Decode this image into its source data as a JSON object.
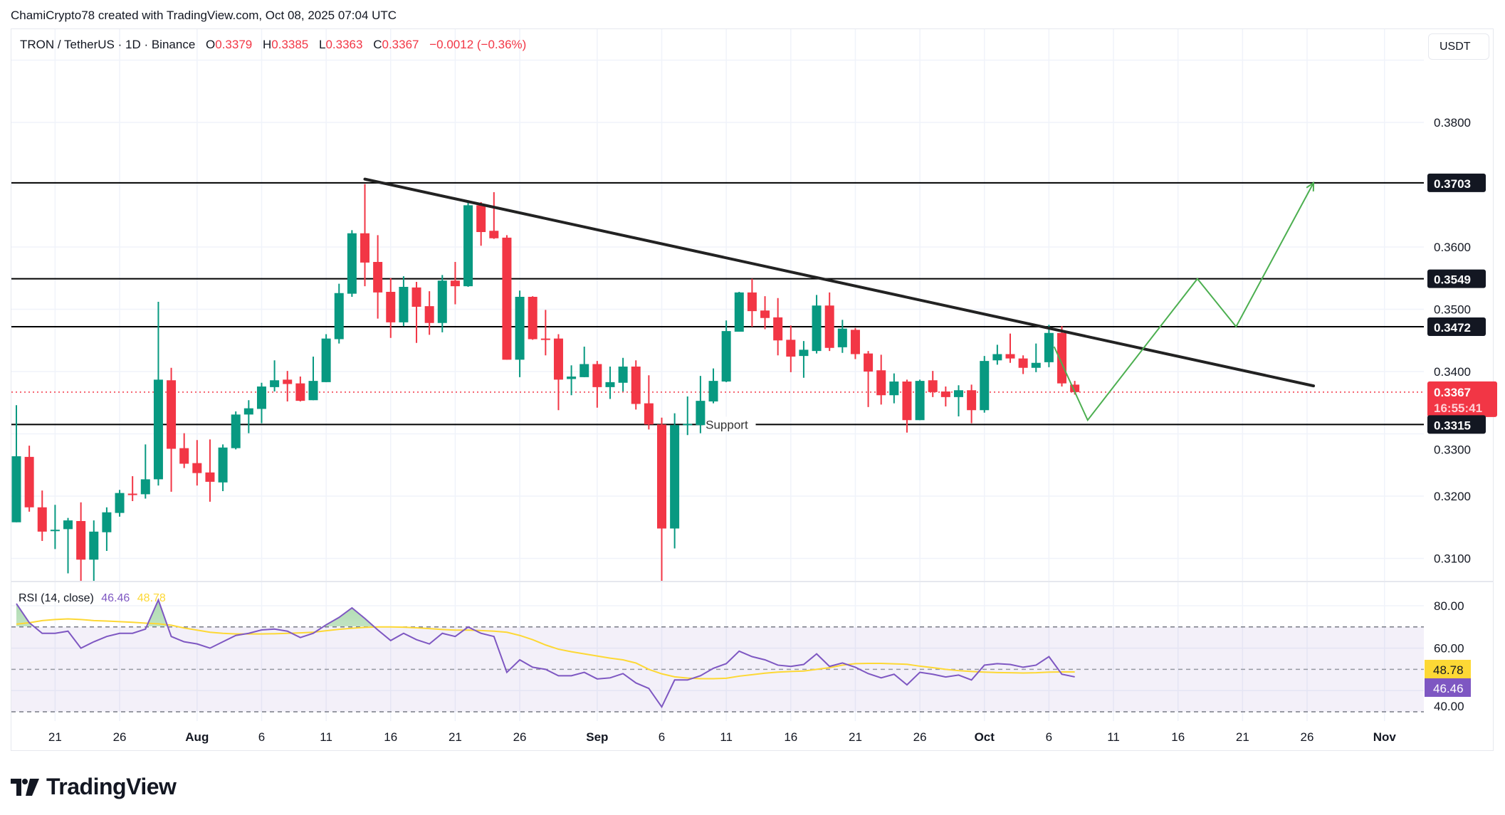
{
  "header": {
    "attribution": "ChamiCrypto78 created with TradingView.com, Oct 08, 2025 07:04 UTC"
  },
  "legend": {
    "symbol": "TRON / TetherUS · 1D · Binance",
    "open_label": "O",
    "open": "0.3379",
    "high_label": "H",
    "high": "0.3385",
    "low_label": "L",
    "low": "0.3363",
    "close_label": "C",
    "close": "0.3367",
    "change": "−0.0012 (−0.36%)"
  },
  "currency_button": "USDT",
  "colors": {
    "up": "#089981",
    "down": "#f23645",
    "rsi": "#7e57c2",
    "rsi_ma": "#fdd835",
    "projection": "#4caf50",
    "trendline": "#222222"
  },
  "price_axis": {
    "ticks": [
      "0.3800",
      "0.3600",
      "0.3500",
      "0.3400",
      "0.3300",
      "0.3200",
      "0.3100"
    ],
    "tick_values": [
      0.38,
      0.36,
      0.35,
      0.34,
      0.33,
      0.32,
      0.31
    ],
    "grid_values": [
      0.39,
      0.38,
      0.37,
      0.36,
      0.35,
      0.34,
      0.33,
      0.32,
      0.31
    ],
    "last_price": "0.3367",
    "countdown": "16:55:41"
  },
  "levels": [
    {
      "label": "0.3703",
      "value": 0.3703
    },
    {
      "label": "0.3549",
      "value": 0.3549
    },
    {
      "label": "0.3472",
      "value": 0.3472
    },
    {
      "label": "0.3315",
      "value": 0.3315,
      "text": "Support"
    }
  ],
  "drawings": {
    "trendline": [
      {
        "day": 27,
        "price": 0.3709
      },
      {
        "day": 100.5,
        "price": 0.3377
      }
    ],
    "projection": [
      {
        "day": 80.4,
        "price": 0.344
      },
      {
        "day": 83,
        "price": 0.3322
      },
      {
        "day": 91.5,
        "price": 0.3549
      },
      {
        "day": 94.5,
        "price": 0.3472
      },
      {
        "day": 100.5,
        "price": 0.3703
      }
    ]
  },
  "time_axis": [
    {
      "label": "21",
      "day": 3
    },
    {
      "label": "26",
      "day": 8
    },
    {
      "label": "Aug",
      "day": 14
    },
    {
      "label": "6",
      "day": 19
    },
    {
      "label": "11",
      "day": 24
    },
    {
      "label": "16",
      "day": 29
    },
    {
      "label": "21",
      "day": 34
    },
    {
      "label": "26",
      "day": 39
    },
    {
      "label": "Sep",
      "day": 45
    },
    {
      "label": "6",
      "day": 50
    },
    {
      "label": "11",
      "day": 55
    },
    {
      "label": "16",
      "day": 60
    },
    {
      "label": "21",
      "day": 65
    },
    {
      "label": "26",
      "day": 70
    },
    {
      "label": "Oct",
      "day": 75
    },
    {
      "label": "6",
      "day": 80
    },
    {
      "label": "11",
      "day": 85
    },
    {
      "label": "16",
      "day": 90
    },
    {
      "label": "21",
      "day": 95
    },
    {
      "label": "26",
      "day": 100
    },
    {
      "label": "Nov",
      "day": 106
    }
  ],
  "rsi": {
    "title": "RSI (14, close)",
    "value": "46.46",
    "ma_value": "48.78",
    "axis_ticks": [
      "80.00",
      "60.00",
      "40.00"
    ],
    "axis_values": [
      80,
      60,
      40
    ],
    "bands": [
      70,
      50,
      30
    ]
  },
  "chart_data": {
    "type": "candlestick",
    "title": "TRON / TetherUS · 1D · Binance",
    "start_date": "2025-07-18",
    "ylim": [
      0.303,
      0.392
    ],
    "ohlc": [
      [
        0.3158,
        0.3346,
        0.3158,
        0.3264
      ],
      [
        0.3263,
        0.3281,
        0.3175,
        0.3182
      ],
      [
        0.3182,
        0.3209,
        0.3128,
        0.3143
      ],
      [
        0.3145,
        0.3186,
        0.3115,
        0.3146
      ],
      [
        0.3147,
        0.3165,
        0.3076,
        0.3161
      ],
      [
        0.316,
        0.319,
        0.3063,
        0.3098
      ],
      [
        0.3098,
        0.3161,
        0.3063,
        0.3143
      ],
      [
        0.3142,
        0.3182,
        0.3112,
        0.3174
      ],
      [
        0.3173,
        0.321,
        0.3167,
        0.3205
      ],
      [
        0.3204,
        0.3232,
        0.3192,
        0.3203
      ],
      [
        0.3203,
        0.3283,
        0.3196,
        0.3227
      ],
      [
        0.3227,
        0.3512,
        0.3217,
        0.3387
      ],
      [
        0.3386,
        0.3406,
        0.3207,
        0.3276
      ],
      [
        0.3277,
        0.3301,
        0.3245,
        0.3252
      ],
      [
        0.3253,
        0.329,
        0.3217,
        0.3237
      ],
      [
        0.3238,
        0.3291,
        0.3191,
        0.3223
      ],
      [
        0.3222,
        0.3283,
        0.3208,
        0.3278
      ],
      [
        0.3277,
        0.3336,
        0.3275,
        0.3331
      ],
      [
        0.3331,
        0.3354,
        0.3301,
        0.3341
      ],
      [
        0.334,
        0.3382,
        0.3317,
        0.3376
      ],
      [
        0.3375,
        0.3418,
        0.3368,
        0.3386
      ],
      [
        0.3387,
        0.3401,
        0.3352,
        0.338
      ],
      [
        0.3381,
        0.3392,
        0.3352,
        0.3353
      ],
      [
        0.3354,
        0.3424,
        0.3354,
        0.3385
      ],
      [
        0.3383,
        0.346,
        0.3383,
        0.3453
      ],
      [
        0.3452,
        0.3541,
        0.3445,
        0.3526
      ],
      [
        0.3525,
        0.3627,
        0.352,
        0.3622
      ],
      [
        0.3622,
        0.3701,
        0.3537,
        0.3575
      ],
      [
        0.3576,
        0.3619,
        0.3485,
        0.3527
      ],
      [
        0.3528,
        0.355,
        0.3454,
        0.3479
      ],
      [
        0.3479,
        0.3553,
        0.3473,
        0.3536
      ],
      [
        0.3535,
        0.3544,
        0.3446,
        0.3504
      ],
      [
        0.3505,
        0.3529,
        0.3459,
        0.3478
      ],
      [
        0.3478,
        0.3555,
        0.3463,
        0.3546
      ],
      [
        0.3546,
        0.3576,
        0.3508,
        0.3537
      ],
      [
        0.3537,
        0.3675,
        0.3536,
        0.3667
      ],
      [
        0.3667,
        0.3672,
        0.3602,
        0.3624
      ],
      [
        0.3626,
        0.3688,
        0.3613,
        0.3614
      ],
      [
        0.3615,
        0.3619,
        0.3419,
        0.3419
      ],
      [
        0.3419,
        0.353,
        0.3391,
        0.352
      ],
      [
        0.352,
        0.3521,
        0.3451,
        0.3452
      ],
      [
        0.3453,
        0.3499,
        0.3426,
        0.3452
      ],
      [
        0.3453,
        0.346,
        0.3338,
        0.3387
      ],
      [
        0.3388,
        0.341,
        0.3362,
        0.3392
      ],
      [
        0.3391,
        0.344,
        0.3391,
        0.3412
      ],
      [
        0.3412,
        0.3417,
        0.3342,
        0.3375
      ],
      [
        0.3375,
        0.3408,
        0.3356,
        0.3383
      ],
      [
        0.3382,
        0.3422,
        0.3368,
        0.3408
      ],
      [
        0.3408,
        0.3418,
        0.3339,
        0.3348
      ],
      [
        0.3349,
        0.3394,
        0.3307,
        0.3315
      ],
      [
        0.3315,
        0.3326,
        0.3063,
        0.3148
      ],
      [
        0.3148,
        0.3333,
        0.3116,
        0.3314
      ],
      [
        0.3315,
        0.336,
        0.3298,
        0.3316
      ],
      [
        0.3314,
        0.3393,
        0.3301,
        0.3353
      ],
      [
        0.3352,
        0.3405,
        0.3349,
        0.3385
      ],
      [
        0.3384,
        0.3482,
        0.3383,
        0.3465
      ],
      [
        0.3464,
        0.3528,
        0.3464,
        0.3527
      ],
      [
        0.3527,
        0.3549,
        0.3472,
        0.3497
      ],
      [
        0.3498,
        0.3521,
        0.3468,
        0.3486
      ],
      [
        0.3487,
        0.3518,
        0.3426,
        0.345
      ],
      [
        0.3451,
        0.3474,
        0.3399,
        0.3424
      ],
      [
        0.3425,
        0.3449,
        0.339,
        0.3435
      ],
      [
        0.3433,
        0.3523,
        0.3429,
        0.3506
      ],
      [
        0.3506,
        0.3527,
        0.3433,
        0.3438
      ],
      [
        0.3439,
        0.3483,
        0.343,
        0.3469
      ],
      [
        0.3467,
        0.347,
        0.342,
        0.3428
      ],
      [
        0.3429,
        0.3433,
        0.3343,
        0.34
      ],
      [
        0.3402,
        0.3427,
        0.3347,
        0.3362
      ],
      [
        0.3362,
        0.3397,
        0.3349,
        0.3384
      ],
      [
        0.3384,
        0.3387,
        0.3302,
        0.3322
      ],
      [
        0.3322,
        0.3387,
        0.3322,
        0.3385
      ],
      [
        0.3386,
        0.3401,
        0.3359,
        0.3367
      ],
      [
        0.3368,
        0.3376,
        0.3344,
        0.3359
      ],
      [
        0.3359,
        0.3378,
        0.3328,
        0.337
      ],
      [
        0.337,
        0.3379,
        0.3317,
        0.3338
      ],
      [
        0.3338,
        0.3425,
        0.3334,
        0.3417
      ],
      [
        0.3418,
        0.3443,
        0.3411,
        0.3428
      ],
      [
        0.3428,
        0.3461,
        0.3414,
        0.3421
      ],
      [
        0.3421,
        0.3426,
        0.3396,
        0.3406
      ],
      [
        0.3406,
        0.3445,
        0.3399,
        0.3414
      ],
      [
        0.3415,
        0.3475,
        0.3407,
        0.3462
      ],
      [
        0.3462,
        0.3473,
        0.3376,
        0.3381
      ],
      [
        0.3379,
        0.3385,
        0.3363,
        0.3367
      ]
    ],
    "rsi": [
      81,
      72,
      67,
      67,
      68,
      60,
      63,
      65.5,
      67,
      67,
      69,
      82.7,
      65.5,
      63,
      62,
      60,
      63,
      66,
      67,
      68.6,
      69,
      68,
      65,
      67,
      71,
      74.5,
      79,
      74,
      68.6,
      63.6,
      67,
      64,
      62,
      67,
      65.5,
      70,
      67,
      65.5,
      48.6,
      54.5,
      51,
      50,
      47,
      47,
      48.6,
      45.5,
      46,
      48,
      43.6,
      41,
      32.3,
      45,
      45,
      47,
      50.5,
      52.7,
      58.6,
      56,
      54.5,
      52,
      51.4,
      52.3,
      57.3,
      51.4,
      53,
      51,
      48,
      46,
      47.7,
      42.7,
      48.6,
      47.7,
      46.4,
      47.3,
      45,
      52,
      52.7,
      52.3,
      51,
      52,
      56,
      47.7,
      46.46
    ],
    "rsi_ma": [
      71.3,
      72,
      73,
      73.5,
      73.8,
      73.5,
      73,
      72.8,
      72.5,
      72.2,
      71.8,
      71.5,
      70.8,
      69.5,
      68.5,
      67.5,
      67,
      66.7,
      66.7,
      66.7,
      66.8,
      67,
      67.2,
      67.5,
      68.2,
      68.9,
      69.4,
      69.8,
      70,
      70,
      69.9,
      69.6,
      69.2,
      68.8,
      68.5,
      68.5,
      68.3,
      68,
      67.5,
      66,
      64,
      61.5,
      59.5,
      58.3,
      57.3,
      56.3,
      55.3,
      54.5,
      53,
      50,
      47.9,
      46.5,
      45.9,
      45.6,
      45.6,
      45.8,
      46.8,
      47.5,
      48.2,
      48.7,
      49,
      49.2,
      50,
      50.8,
      52,
      52.7,
      52.8,
      52.8,
      52.6,
      52.4,
      51.5,
      50.8,
      50,
      49.4,
      49,
      48.7,
      48.5,
      48.4,
      48.3,
      48.4,
      48.7,
      48.8,
      48.78
    ]
  },
  "branding": {
    "logo_text": "TradingView"
  }
}
